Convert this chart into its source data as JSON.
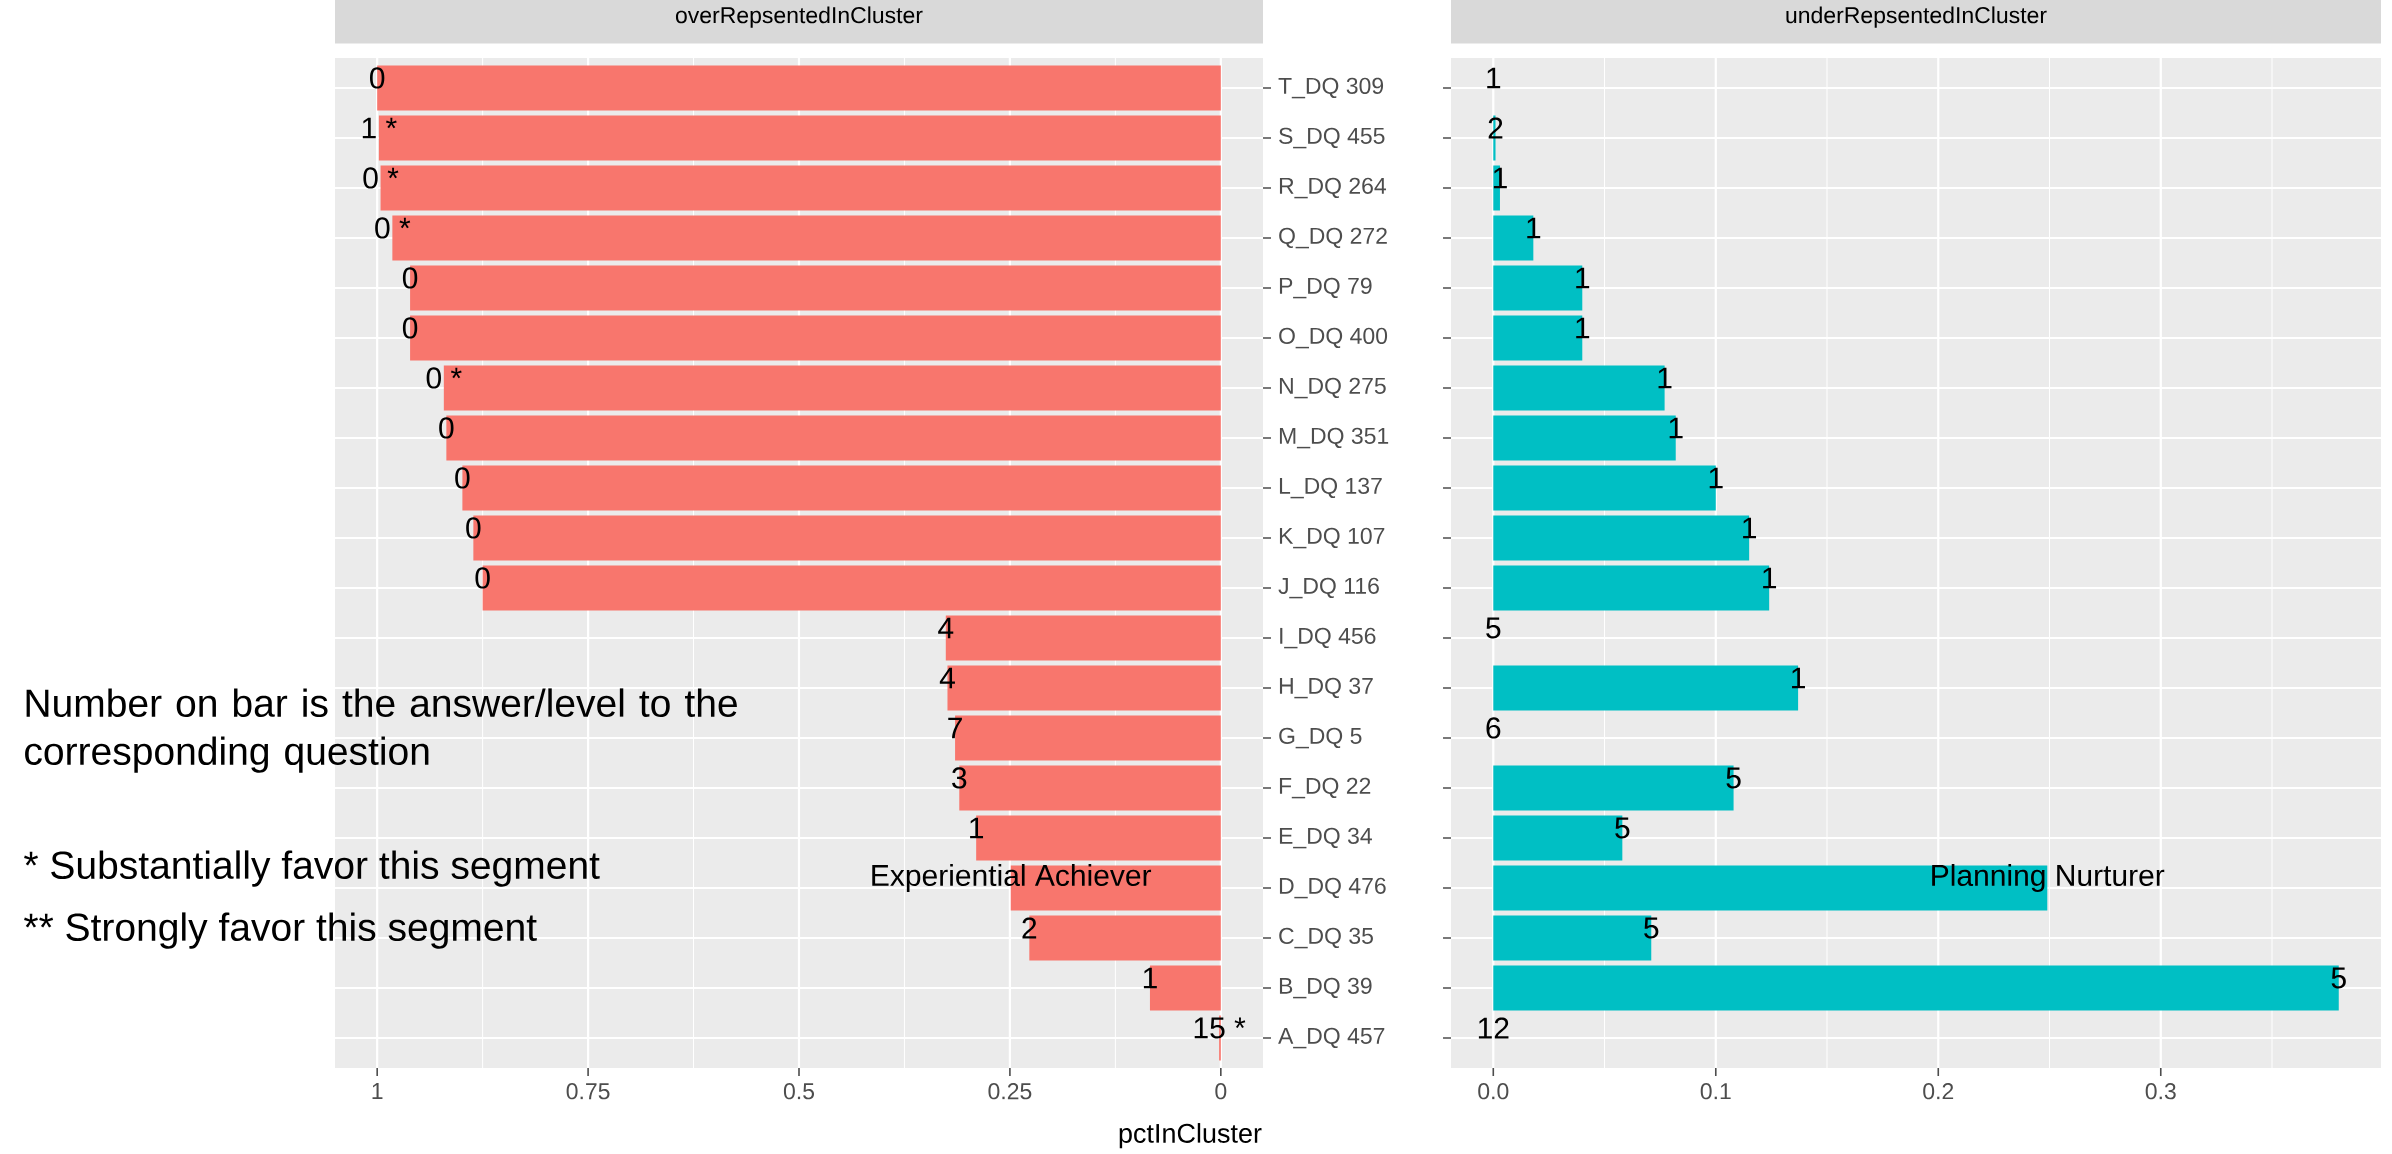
{
  "chart_data": [
    {
      "type": "bar",
      "orientation": "horizontal",
      "title": "overRepsentedInCluster",
      "xlabel": "pctInCluster",
      "color": "#f8766d",
      "grid": true,
      "categories": [
        "T_DQ 309",
        "S_DQ 455",
        "R_DQ 264",
        "Q_DQ 272",
        "P_DQ 79",
        "O_DQ 400",
        "N_DQ 275",
        "M_DQ 351",
        "L_DQ 137",
        "K_DQ 107",
        "J_DQ 116",
        "I_DQ 456",
        "H_DQ 37",
        "G_DQ 5",
        "F_DQ 22",
        "E_DQ 34",
        "D_DQ 476",
        "C_DQ 35",
        "B_DQ 39",
        "A_DQ 457"
      ],
      "values": [
        1.0,
        0.998,
        0.996,
        0.982,
        0.961,
        0.961,
        0.921,
        0.918,
        0.899,
        0.886,
        0.875,
        0.326,
        0.324,
        0.315,
        0.31,
        0.29,
        0.249,
        0.227,
        0.084,
        0.002
      ],
      "xlim": [
        1.05,
        -0.05
      ],
      "xticks": [
        1,
        0.75,
        0.5,
        0.25,
        0
      ],
      "annotations": [
        {
          "text": "0",
          "x": 1.0,
          "y": "T_DQ 309"
        },
        {
          "text": "1 *",
          "x": 0.998,
          "y": "S_DQ 455"
        },
        {
          "text": "0 *",
          "x": 0.996,
          "y": "R_DQ 264"
        },
        {
          "text": "0 *",
          "x": 0.982,
          "y": "Q_DQ 272"
        },
        {
          "text": "0",
          "x": 0.961,
          "y": "P_DQ 79"
        },
        {
          "text": "0",
          "x": 0.961,
          "y": "O_DQ 400"
        },
        {
          "text": "0 *",
          "x": 0.921,
          "y": "N_DQ 275"
        },
        {
          "text": "0",
          "x": 0.918,
          "y": "M_DQ 351"
        },
        {
          "text": "0",
          "x": 0.899,
          "y": "L_DQ 137"
        },
        {
          "text": "0",
          "x": 0.886,
          "y": "K_DQ 107"
        },
        {
          "text": "0",
          "x": 0.875,
          "y": "J_DQ 116"
        },
        {
          "text": "4",
          "x": 0.326,
          "y": "I_DQ 456"
        },
        {
          "text": "4",
          "x": 0.324,
          "y": "H_DQ 37"
        },
        {
          "text": "7",
          "x": 0.315,
          "y": "G_DQ 5"
        },
        {
          "text": "3",
          "x": 0.31,
          "y": "F_DQ 22"
        },
        {
          "text": "1",
          "x": 0.29,
          "y": "E_DQ 34"
        },
        {
          "text": "Experiential Achiever",
          "x": 0.249,
          "y": "D_DQ 476"
        },
        {
          "text": "2",
          "x": 0.227,
          "y": "C_DQ 35"
        },
        {
          "text": "1",
          "x": 0.084,
          "y": "B_DQ 39"
        },
        {
          "text": "15 *",
          "x": 0.002,
          "y": "A_DQ 457"
        },
        "Number on bar is the answer/level to the corresponding question",
        "* Substantially favor this segment",
        "** Strongly favor this segment"
      ]
    },
    {
      "type": "bar",
      "orientation": "horizontal",
      "title": "underRepsentedInCluster",
      "color": "#00bfc4",
      "grid": true,
      "tick_labels": "x",
      "categories": [
        "T_DQ 309",
        "S_DQ 455",
        "R_DQ 264",
        "Q_DQ 272",
        "P_DQ 79",
        "O_DQ 400",
        "N_DQ 275",
        "M_DQ 351",
        "L_DQ 137",
        "K_DQ 107",
        "J_DQ 116",
        "I_DQ 456",
        "H_DQ 37",
        "G_DQ 5",
        "F_DQ 22",
        "E_DQ 34",
        "D_DQ 476",
        "C_DQ 35",
        "B_DQ 39",
        "A_DQ 457"
      ],
      "values": [
        0.0,
        0.001,
        0.003,
        0.018,
        0.04,
        0.04,
        0.077,
        0.082,
        0.1,
        0.115,
        0.124,
        0.0,
        0.137,
        0.0,
        0.108,
        0.058,
        0.249,
        0.071,
        0.38,
        0.0
      ],
      "xlim": [
        -0.019,
        0.399
      ],
      "xticks": [
        {
          "value": 0,
          "label": "0.0"
        },
        {
          "value": 0.1,
          "label": "0.1"
        },
        {
          "value": 0.2,
          "label": "0.2"
        },
        {
          "value": 0.3,
          "label": "0.3"
        }
      ],
      "annotations": [
        {
          "text": "1",
          "x": 0.0,
          "y": "T_DQ 309"
        },
        {
          "text": "2",
          "x": 0.001,
          "y": "S_DQ 455"
        },
        {
          "text": "1",
          "x": 0.003,
          "y": "R_DQ 264"
        },
        {
          "text": "1",
          "x": 0.018,
          "y": "Q_DQ 272"
        },
        {
          "text": "1",
          "x": 0.04,
          "y": "P_DQ 79"
        },
        {
          "text": "1",
          "x": 0.04,
          "y": "O_DQ 400"
        },
        {
          "text": "1",
          "x": 0.077,
          "y": "N_DQ 275"
        },
        {
          "text": "1",
          "x": 0.082,
          "y": "M_DQ 351"
        },
        {
          "text": "1",
          "x": 0.1,
          "y": "L_DQ 137"
        },
        {
          "text": "1",
          "x": 0.115,
          "y": "K_DQ 107"
        },
        {
          "text": "1",
          "x": 0.124,
          "y": "J_DQ 116"
        },
        {
          "text": "5",
          "x": 0.0,
          "y": "I_DQ 456"
        },
        {
          "text": "1",
          "x": 0.137,
          "y": "H_DQ 37"
        },
        {
          "text": "6",
          "x": 0.0,
          "y": "G_DQ 5"
        },
        {
          "text": "5",
          "x": 0.108,
          "y": "F_DQ 22"
        },
        {
          "text": "5",
          "x": 0.058,
          "y": "E_DQ 34"
        },
        {
          "text": "Planning Nurturer",
          "x": 0.249,
          "y": "D_DQ 476"
        },
        {
          "text": "5",
          "x": 0.071,
          "y": "C_DQ 35"
        },
        {
          "text": "5",
          "x": 0.38,
          "y": "B_DQ 39"
        },
        {
          "text": "12",
          "x": 0.0,
          "y": "A_DQ 457"
        }
      ]
    }
  ]
}
